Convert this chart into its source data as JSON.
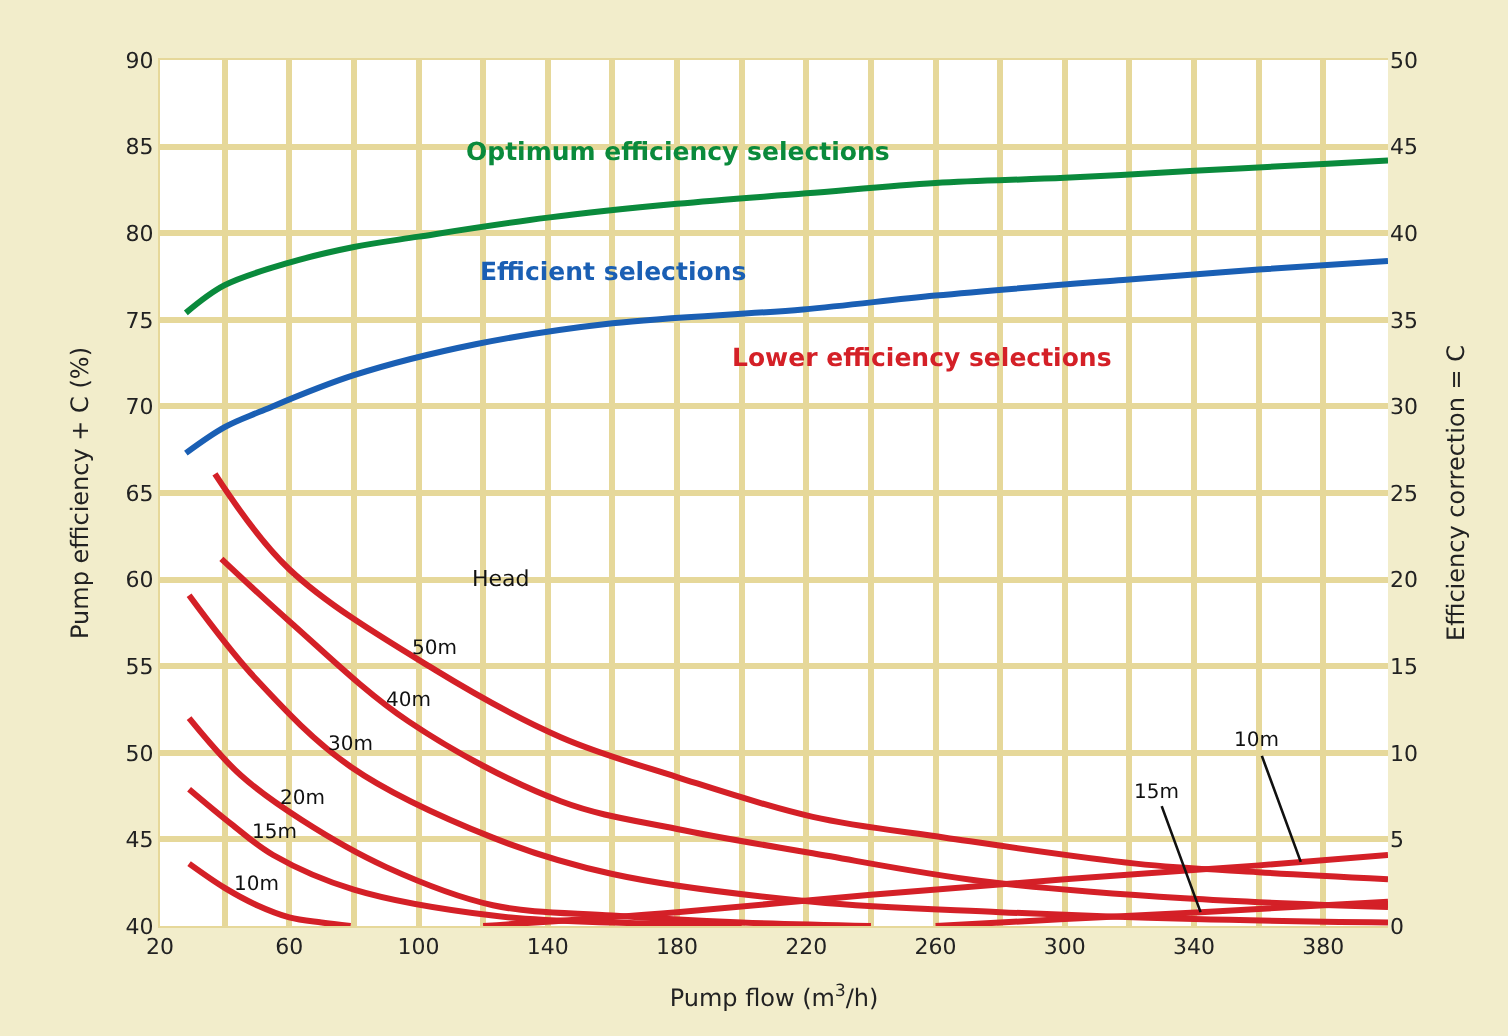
{
  "chart_data": {
    "type": "line",
    "xlabel": "Pump flow (m$^{3}$/h)",
    "ylabel": "Pump efficiency + C (%)",
    "y2label": "Efficiency correction = C",
    "xlim": [
      20,
      400
    ],
    "xticks": [
      20,
      {
        "value": 40,
        "label": null
      },
      60,
      {
        "value": 80,
        "label": null
      },
      100,
      {
        "value": 120,
        "label": null
      },
      140,
      {
        "value": 160,
        "label": null
      },
      180,
      {
        "value": 200,
        "label": null
      },
      220,
      {
        "value": 240,
        "label": null
      },
      260,
      {
        "value": 280,
        "label": null
      },
      300,
      {
        "value": 320,
        "label": null
      },
      340,
      {
        "value": 360,
        "label": null
      },
      380,
      {
        "value": 400,
        "label": null
      }
    ],
    "ylim": [
      40,
      90
    ],
    "yticks": [
      40,
      45,
      50,
      55,
      60,
      65,
      70,
      75,
      80,
      85,
      90
    ],
    "y2lim": [
      0,
      50
    ],
    "y2ticks": [
      0,
      5,
      10,
      15,
      20,
      25,
      30,
      35,
      40,
      45,
      50
    ],
    "grid": true,
    "legend": false,
    "marker": "none",
    "line_style": "solid",
    "series": [
      {
        "name": "Optimum efficiency selections",
        "color": "#0a8a3c",
        "x": [
          28,
          40,
          60,
          80,
          100,
          140,
          180,
          220,
          260,
          300,
          340,
          380,
          400
        ],
        "values": [
          75.4,
          77.0,
          78.3,
          79.2,
          79.8,
          80.9,
          81.7,
          82.3,
          82.9,
          83.2,
          83.6,
          84.0,
          84.2
        ]
      },
      {
        "name": "Efficient selections",
        "color": "#1a5fb4",
        "x": [
          28,
          40,
          51,
          80,
          118,
          160,
          219,
          260,
          318,
          360,
          400
        ],
        "values": [
          67.3,
          68.8,
          69.7,
          71.8,
          73.6,
          74.8,
          75.6,
          76.4,
          77.3,
          77.9,
          78.4
        ]
      },
      {
        "name": "50m",
        "axis": "y2",
        "color": "#d42027",
        "x": [
          37,
          60,
          105,
          144,
          180,
          222,
          263,
          322,
          360,
          400
        ],
        "values": [
          26.1,
          20.6,
          14.8,
          10.9,
          8.6,
          6.3,
          5.1,
          3.6,
          3.1,
          2.7
        ]
      },
      {
        "name": "40m",
        "axis": "y2",
        "color": "#d42027",
        "x": [
          39,
          60,
          97,
          144,
          180,
          222,
          274,
          337,
          400
        ],
        "values": [
          21.2,
          17.6,
          11.8,
          7.2,
          5.6,
          4.2,
          2.6,
          1.6,
          1.1
        ]
      },
      {
        "name": "30m",
        "axis": "y2",
        "color": "#d42027",
        "x": [
          29,
          50,
          79,
          123,
          160,
          222,
          280,
          340,
          400
        ],
        "values": [
          19.1,
          14.2,
          9.2,
          5.1,
          3.0,
          1.4,
          0.8,
          0.4,
          0.2
        ]
      },
      {
        "name": "20m",
        "axis": "y2",
        "color": "#d42027",
        "x": [
          29,
          45,
          64,
          90,
          123,
          160,
          200,
          240
        ],
        "values": [
          12.0,
          8.7,
          6.1,
          3.4,
          1.2,
          0.6,
          0.2,
          0
        ]
      },
      {
        "name": "15m",
        "axis": "y2",
        "color": "#d42027",
        "x": [
          29,
          42,
          55,
          80,
          123,
          160,
          200,
          230,
          260,
          300,
          342,
          400
        ],
        "values": [
          7.9,
          5.9,
          4.1,
          2.1,
          0.6,
          0.2,
          0.1,
          null,
          0,
          0.4,
          0.8,
          1.4
        ]
      },
      {
        "name": "10m",
        "axis": "y2",
        "color": "#d42027",
        "x": [
          29,
          40,
          50,
          60,
          70,
          79,
          100,
          120,
          180,
          240,
          300,
          360,
          400
        ],
        "values": [
          3.6,
          2.2,
          1.2,
          0.5,
          0.2,
          0,
          null,
          0,
          0.8,
          1.8,
          2.7,
          3.5,
          4.1
        ]
      }
    ],
    "annotations": [
      "Head",
      "Lower efficiency selections",
      {
        "text": "15m",
        "x": 342,
        "y": 40.8
      },
      {
        "text": "10m",
        "x": 373,
        "y": 43.7
      }
    ]
  }
}
